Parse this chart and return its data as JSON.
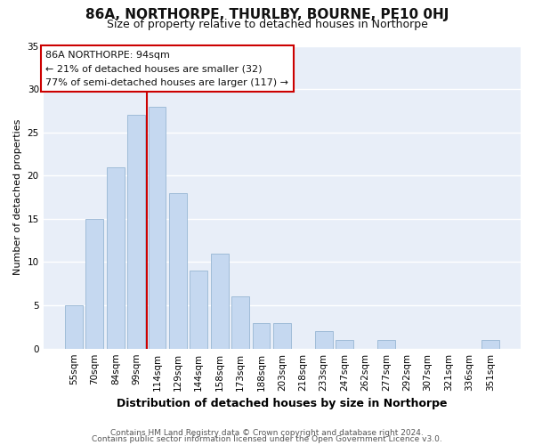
{
  "title": "86A, NORTHORPE, THURLBY, BOURNE, PE10 0HJ",
  "subtitle": "Size of property relative to detached houses in Northorpe",
  "xlabel": "Distribution of detached houses by size in Northorpe",
  "ylabel": "Number of detached properties",
  "bar_labels": [
    "55sqm",
    "70sqm",
    "84sqm",
    "99sqm",
    "114sqm",
    "129sqm",
    "144sqm",
    "158sqm",
    "173sqm",
    "188sqm",
    "203sqm",
    "218sqm",
    "233sqm",
    "247sqm",
    "262sqm",
    "277sqm",
    "292sqm",
    "307sqm",
    "321sqm",
    "336sqm",
    "351sqm"
  ],
  "bar_values": [
    5,
    15,
    21,
    27,
    28,
    18,
    9,
    11,
    6,
    3,
    3,
    0,
    2,
    1,
    0,
    1,
    0,
    0,
    0,
    0,
    1
  ],
  "bar_color": "#c5d8f0",
  "bar_edge_color": "#a0bcd8",
  "vline_x_index": 3.5,
  "vline_color": "#cc0000",
  "ylim": [
    0,
    35
  ],
  "yticks": [
    0,
    5,
    10,
    15,
    20,
    25,
    30,
    35
  ],
  "annotation_title": "86A NORTHORPE: 94sqm",
  "annotation_line1": "← 21% of detached houses are smaller (32)",
  "annotation_line2": "77% of semi-detached houses are larger (117) →",
  "annotation_box_facecolor": "#ffffff",
  "annotation_box_edgecolor": "#cc0000",
  "footer_line1": "Contains HM Land Registry data © Crown copyright and database right 2024.",
  "footer_line2": "Contains public sector information licensed under the Open Government Licence v3.0.",
  "fig_bg_color": "#ffffff",
  "plot_bg_color": "#e8eef8",
  "grid_color": "#ffffff",
  "title_fontsize": 11,
  "subtitle_fontsize": 9,
  "xlabel_fontsize": 9,
  "ylabel_fontsize": 8,
  "tick_fontsize": 7.5,
  "footer_fontsize": 6.5
}
